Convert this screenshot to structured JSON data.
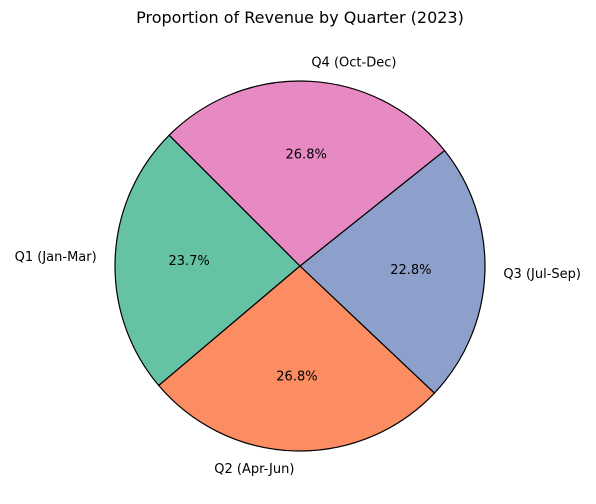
{
  "chart_data": {
    "type": "pie",
    "title": "Proportion of Revenue by Quarter (2023)",
    "categories": [
      "Q1 (Jan-Mar)",
      "Q2 (Apr-Jun)",
      "Q3 (Jul-Sep)",
      "Q4 (Oct-Dec)"
    ],
    "values": [
      23.7,
      26.8,
      22.8,
      26.8
    ],
    "value_labels": [
      "23.7%",
      "26.8%",
      "22.8%",
      "26.8%"
    ],
    "colors": [
      "#66c2a5",
      "#fc8d62",
      "#8da0cb",
      "#e78ac3"
    ],
    "start_angle_deg": 135,
    "direction": "counterclockwise",
    "legend": "none"
  }
}
